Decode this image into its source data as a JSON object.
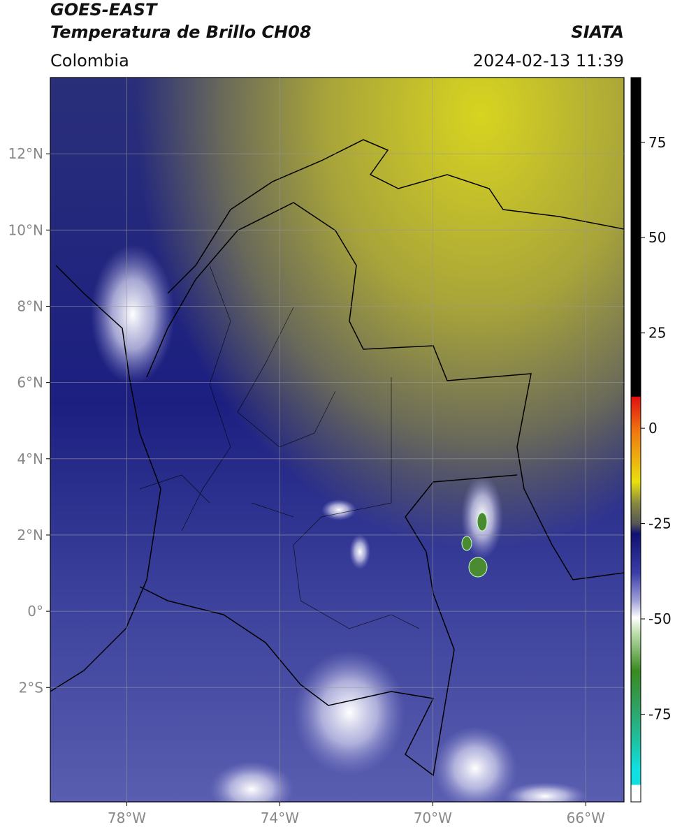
{
  "header": {
    "title": "GOES-EAST",
    "subtitle": "Temperatura de Brillo CH08",
    "region": "Colombia",
    "source": "SIATA",
    "timestamp": "2024-02-13 11:39"
  },
  "map": {
    "lonlim": [
      -80,
      -65
    ],
    "latlim": [
      -5,
      14
    ],
    "lon_ticks": [
      {
        "value": -78,
        "label": "78°W"
      },
      {
        "value": -74,
        "label": "74°W"
      },
      {
        "value": -70,
        "label": "70°W"
      },
      {
        "value": -66,
        "label": "66°W"
      }
    ],
    "lat_ticks": [
      {
        "value": 12,
        "label": "12°N"
      },
      {
        "value": 10,
        "label": "10°N"
      },
      {
        "value": 8,
        "label": "8°N"
      },
      {
        "value": 6,
        "label": "6°N"
      },
      {
        "value": 4,
        "label": "4°N"
      },
      {
        "value": 2,
        "label": "2°N"
      },
      {
        "value": 0,
        "label": "0°"
      },
      {
        "value": -2,
        "label": "2°S"
      }
    ]
  },
  "colorbar": {
    "lim": [
      -98,
      92
    ],
    "ticks": [
      75,
      50,
      25,
      0,
      -25,
      -50,
      -75
    ]
  }
}
